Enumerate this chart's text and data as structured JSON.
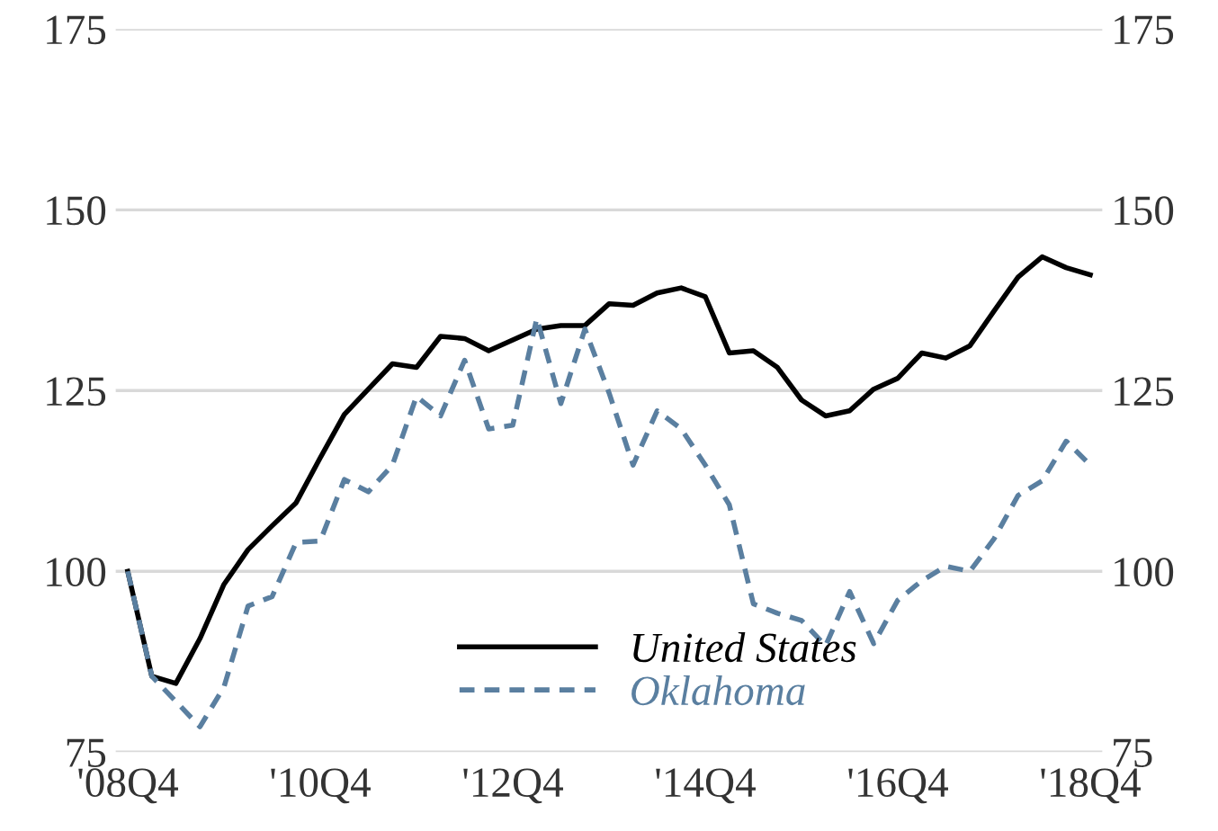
{
  "chart_data": {
    "type": "line",
    "categories": [
      "'08Q4",
      null,
      null,
      null,
      null,
      null,
      null,
      null,
      "'10Q4",
      null,
      null,
      null,
      null,
      null,
      null,
      null,
      "'12Q4",
      null,
      null,
      null,
      null,
      null,
      null,
      null,
      "'14Q4",
      null,
      null,
      null,
      null,
      null,
      null,
      null,
      "'16Q4",
      null,
      null,
      null,
      null,
      null,
      null,
      null,
      "'18Q4"
    ],
    "series": [
      {
        "name": "United States",
        "color": "#000000",
        "line_style": "solid",
        "values": [
          100,
          85.5,
          84.5,
          90.7,
          98.2,
          103,
          106.3,
          109.5,
          115.7,
          121.7,
          125.2,
          128.7,
          128.2,
          132.5,
          132.2,
          130.5,
          132,
          133.5,
          134,
          134,
          137,
          136.8,
          138.5,
          139.2,
          138,
          130.2,
          130.5,
          128.2,
          123.7,
          121.5,
          122.2,
          125.2,
          126.7,
          130.2,
          129.5,
          131.2,
          136,
          140.7,
          143.5,
          142,
          141
        ]
      },
      {
        "name": "Oklahoma",
        "color": "#5a7fa0",
        "line_style": "dashed",
        "values": [
          100,
          85.5,
          82,
          78.5,
          84,
          95.2,
          96.5,
          104,
          104.2,
          112.7,
          111,
          114.7,
          124.2,
          121.5,
          129.2,
          119.7,
          120.2,
          135,
          123.2,
          133.5,
          124.7,
          114.7,
          122.2,
          119.7,
          114.7,
          109.2,
          95.5,
          94.2,
          93.2,
          89.7,
          97.2,
          90,
          96,
          98.7,
          100.7,
          100,
          104.5,
          110.5,
          112.5,
          118,
          114.7
        ]
      }
    ],
    "ylim": [
      75,
      175
    ],
    "yticks": [
      75,
      100,
      125,
      150,
      175
    ],
    "y2lim": [
      75,
      175
    ],
    "y2ticks": [
      75,
      100,
      125,
      150,
      175
    ],
    "grid": "y",
    "legend": "bottom",
    "marker": "none"
  }
}
